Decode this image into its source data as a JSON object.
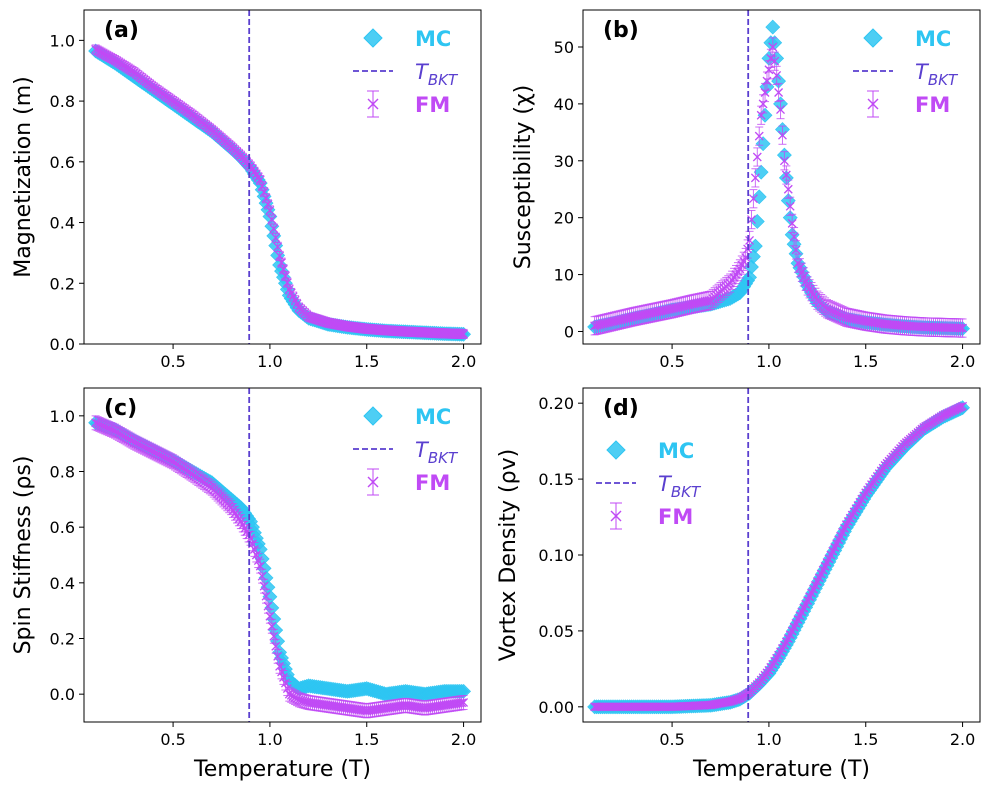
{
  "chart_data": [
    {
      "type": "scatter",
      "panel_label": "(a)",
      "ylabel": "Magnetization (m)",
      "xlabel": "",
      "xlim": [
        0.04,
        2.09
      ],
      "ylim": [
        0.0,
        1.1
      ],
      "xticks": [
        0.5,
        1.0,
        1.5,
        2.0
      ],
      "xtick_labels": [
        "0.5",
        "1.0",
        "1.5",
        "2.0"
      ],
      "yticks": [
        0.0,
        0.2,
        0.4,
        0.6,
        0.8,
        1.0
      ],
      "ytick_labels": [
        "0.0",
        "0.2",
        "0.4",
        "0.6",
        "0.8",
        "1.0"
      ],
      "vline_x": 0.893,
      "legend_position": "top-right",
      "legend": [
        "MC",
        "T_BKT",
        "FM"
      ],
      "series": [
        {
          "name": "MC",
          "x": [
            0.1,
            0.2,
            0.3,
            0.4,
            0.5,
            0.6,
            0.7,
            0.8,
            0.85,
            0.9,
            0.95,
            1.0,
            1.05,
            1.1,
            1.15,
            1.2,
            1.3,
            1.4,
            1.5,
            1.6,
            1.7,
            1.8,
            1.9,
            2.0
          ],
          "y": [
            0.965,
            0.925,
            0.88,
            0.835,
            0.79,
            0.745,
            0.7,
            0.645,
            0.615,
            0.58,
            0.53,
            0.42,
            0.26,
            0.16,
            0.11,
            0.085,
            0.065,
            0.055,
            0.048,
            0.043,
            0.04,
            0.037,
            0.034,
            0.032
          ]
        },
        {
          "name": "FM",
          "x": [
            0.1,
            0.2,
            0.3,
            0.4,
            0.5,
            0.6,
            0.7,
            0.8,
            0.85,
            0.9,
            0.95,
            1.0,
            1.05,
            1.1,
            1.15,
            1.2,
            1.3,
            1.4,
            1.5,
            1.6,
            1.7,
            1.8,
            1.9,
            2.0
          ],
          "y": [
            0.97,
            0.935,
            0.895,
            0.845,
            0.8,
            0.755,
            0.705,
            0.65,
            0.62,
            0.585,
            0.54,
            0.44,
            0.29,
            0.18,
            0.12,
            0.09,
            0.07,
            0.058,
            0.05,
            0.045,
            0.041,
            0.038,
            0.035,
            0.033
          ],
          "yerr": 0.015
        }
      ]
    },
    {
      "type": "scatter",
      "panel_label": "(b)",
      "ylabel": "Susceptibility (χ)",
      "xlabel": "",
      "xlim": [
        0.04,
        2.09
      ],
      "ylim": [
        -2.2,
        56.5
      ],
      "xticks": [
        0.5,
        1.0,
        1.5,
        2.0
      ],
      "xtick_labels": [
        "0.5",
        "1.0",
        "1.5",
        "2.0"
      ],
      "yticks": [
        0,
        10,
        20,
        30,
        40,
        50
      ],
      "ytick_labels": [
        "0",
        "10",
        "20",
        "30",
        "40",
        "50"
      ],
      "vline_x": 0.893,
      "legend_position": "top-right",
      "legend": [
        "MC",
        "T_BKT",
        "FM"
      ],
      "series": [
        {
          "name": "MC",
          "x": [
            0.1,
            0.2,
            0.3,
            0.4,
            0.5,
            0.6,
            0.7,
            0.8,
            0.85,
            0.9,
            0.93,
            0.96,
            0.98,
            1.0,
            1.02,
            1.04,
            1.06,
            1.08,
            1.1,
            1.12,
            1.15,
            1.2,
            1.25,
            1.3,
            1.4,
            1.5,
            1.6,
            1.7,
            1.8,
            1.9,
            2.0
          ],
          "y": [
            0.8,
            1.5,
            2.3,
            3.0,
            3.8,
            4.3,
            4.8,
            5.8,
            6.8,
            9.5,
            15,
            28,
            38,
            48,
            53.5,
            48,
            40,
            31,
            23,
            17,
            12,
            8,
            5,
            3.5,
            2.2,
            1.6,
            1.2,
            0.9,
            0.7,
            0.6,
            0.5
          ]
        },
        {
          "name": "FM",
          "x": [
            0.1,
            0.2,
            0.3,
            0.4,
            0.5,
            0.6,
            0.7,
            0.8,
            0.85,
            0.88,
            0.9,
            0.93,
            0.96,
            0.98,
            1.0,
            1.02,
            1.04,
            1.06,
            1.08,
            1.1,
            1.12,
            1.15,
            1.2,
            1.25,
            1.3,
            1.4,
            1.5,
            1.6,
            1.7,
            1.8,
            1.9,
            2.0
          ],
          "y": [
            1.0,
            1.8,
            2.6,
            3.3,
            4.0,
            4.8,
            5.5,
            8.5,
            11,
            13,
            16,
            27,
            38,
            42,
            46,
            50,
            45,
            39,
            30,
            25,
            19,
            12,
            8,
            5.5,
            4,
            2.5,
            1.8,
            1.3,
            1.0,
            0.8,
            0.7,
            0.6
          ],
          "yerr": 1.6
        }
      ]
    },
    {
      "type": "scatter",
      "panel_label": "(c)",
      "ylabel": "Spin Stiffness (ρs)",
      "xlabel": "Temperature (T)",
      "xlim": [
        0.04,
        2.09
      ],
      "ylim": [
        -0.1,
        1.1
      ],
      "xticks": [
        0.5,
        1.0,
        1.5,
        2.0
      ],
      "xtick_labels": [
        "0.5",
        "1.0",
        "1.5",
        "2.0"
      ],
      "yticks": [
        0.0,
        0.2,
        0.4,
        0.6,
        0.8,
        1.0
      ],
      "ytick_labels": [
        "0.0",
        "0.2",
        "0.4",
        "0.6",
        "0.8",
        "1.0"
      ],
      "vline_x": 0.893,
      "legend_position": "top-right",
      "legend": [
        "MC",
        "T_BKT",
        "FM"
      ],
      "series": [
        {
          "name": "MC",
          "x": [
            0.1,
            0.2,
            0.3,
            0.4,
            0.5,
            0.6,
            0.7,
            0.8,
            0.85,
            0.9,
            0.95,
            1.0,
            1.05,
            1.1,
            1.15,
            1.2,
            1.3,
            1.4,
            1.5,
            1.6,
            1.7,
            1.8,
            1.9,
            2.0
          ],
          "y": [
            0.975,
            0.95,
            0.91,
            0.875,
            0.84,
            0.8,
            0.76,
            0.7,
            0.67,
            0.62,
            0.52,
            0.35,
            0.15,
            0.05,
            0.02,
            0.03,
            0.02,
            0.01,
            0.02,
            0.0,
            0.01,
            0.0,
            0.01,
            0.01
          ]
        },
        {
          "name": "FM",
          "x": [
            0.1,
            0.2,
            0.3,
            0.4,
            0.5,
            0.6,
            0.7,
            0.8,
            0.85,
            0.9,
            0.95,
            1.0,
            1.05,
            1.1,
            1.15,
            1.2,
            1.3,
            1.4,
            1.5,
            1.6,
            1.7,
            1.8,
            1.9,
            2.0
          ],
          "y": [
            0.975,
            0.945,
            0.905,
            0.87,
            0.835,
            0.79,
            0.74,
            0.67,
            0.62,
            0.56,
            0.46,
            0.28,
            0.1,
            0.0,
            -0.02,
            -0.03,
            -0.04,
            -0.05,
            -0.06,
            -0.05,
            -0.04,
            -0.05,
            -0.04,
            -0.03
          ],
          "yerr": 0.025
        }
      ]
    },
    {
      "type": "scatter",
      "panel_label": "(d)",
      "ylabel": "Vortex Density (ρv)",
      "xlabel": "Temperature (T)",
      "xlim": [
        0.04,
        2.09
      ],
      "ylim": [
        -0.01,
        0.21
      ],
      "xticks": [
        0.5,
        1.0,
        1.5,
        2.0
      ],
      "xtick_labels": [
        "0.5",
        "1.0",
        "1.5",
        "2.0"
      ],
      "yticks": [
        0.0,
        0.05,
        0.1,
        0.15,
        0.2
      ],
      "ytick_labels": [
        "0.00",
        "0.05",
        "0.10",
        "0.15",
        "0.20"
      ],
      "vline_x": 0.893,
      "legend_position": "upper-left",
      "legend": [
        "MC",
        "T_BKT",
        "FM"
      ],
      "series": [
        {
          "name": "MC",
          "x": [
            0.1,
            0.2,
            0.3,
            0.4,
            0.5,
            0.6,
            0.7,
            0.8,
            0.85,
            0.9,
            0.95,
            1.0,
            1.05,
            1.1,
            1.2,
            1.3,
            1.4,
            1.5,
            1.6,
            1.7,
            1.8,
            1.9,
            2.0
          ],
          "y": [
            0.0,
            0.0,
            0.0,
            0.0,
            0.0,
            0.0005,
            0.001,
            0.003,
            0.005,
            0.009,
            0.015,
            0.022,
            0.032,
            0.043,
            0.068,
            0.093,
            0.118,
            0.139,
            0.157,
            0.171,
            0.183,
            0.191,
            0.197
          ]
        },
        {
          "name": "FM",
          "x": [
            0.1,
            0.2,
            0.3,
            0.4,
            0.5,
            0.6,
            0.7,
            0.8,
            0.85,
            0.9,
            0.95,
            1.0,
            1.05,
            1.1,
            1.2,
            1.3,
            1.4,
            1.5,
            1.6,
            1.7,
            1.8,
            1.9,
            2.0
          ],
          "y": [
            0.0,
            0.0,
            0.0,
            0.0,
            0.0,
            0.0006,
            0.0012,
            0.0035,
            0.0055,
            0.0095,
            0.016,
            0.024,
            0.034,
            0.045,
            0.07,
            0.095,
            0.12,
            0.141,
            0.159,
            0.173,
            0.184,
            0.192,
            0.198
          ],
          "yerr": 0.002
        }
      ]
    }
  ],
  "colors": {
    "mc": "#2ec5f2",
    "fm": "#c04af5",
    "vline": "#5a3fcf",
    "frame": "#000000"
  },
  "legend_text": {
    "mc": "MC",
    "tbkt_main": "T",
    "tbkt_sub": "BKT",
    "fm": "FM"
  }
}
